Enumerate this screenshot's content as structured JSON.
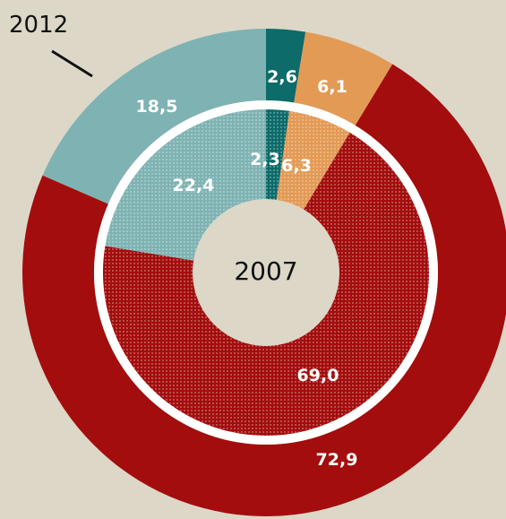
{
  "chart_data": {
    "type": "donut",
    "rings": [
      {
        "label": "2012",
        "slices": [
          {
            "value": 2.6,
            "label": "2,6",
            "color": "#0d6b6a"
          },
          {
            "value": 6.1,
            "label": "6,1",
            "color": "#e39a55"
          },
          {
            "value": 72.9,
            "label": "72,9",
            "color": "#a30d0d"
          },
          {
            "value": 18.5,
            "label": "18,5",
            "color": "#7fb3b3"
          }
        ]
      },
      {
        "label": "2007",
        "slices": [
          {
            "value": 2.3,
            "label": "2,3",
            "color": "#0d6b6a"
          },
          {
            "value": 6.3,
            "label": "6,3",
            "color": "#e39a55"
          },
          {
            "value": 69.0,
            "label": "69,0",
            "color": "#a30d0d"
          },
          {
            "value": 22.4,
            "label": "22,4",
            "color": "#7fb3b3"
          }
        ]
      }
    ],
    "background": "#ddd7c8",
    "separator_color": "#ffffff"
  }
}
